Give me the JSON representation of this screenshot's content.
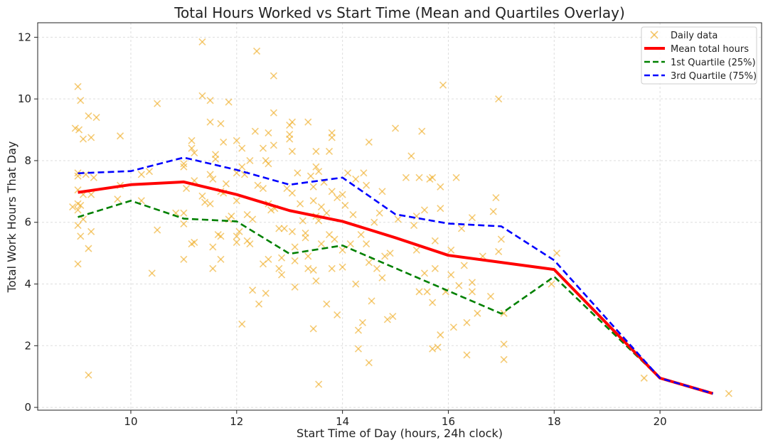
{
  "chart_data": {
    "type": "line",
    "title": "Total Hours Worked vs Start Time (Mean and Quartiles Overlay)",
    "xlabel": "Start Time of Day (hours, 24h clock)",
    "ylabel": "Total Work Hours That Day",
    "xlim": [
      8.24,
      21.92
    ],
    "ylim": [
      -0.09,
      12.47
    ],
    "xticks": [
      10,
      12,
      14,
      16,
      18,
      20
    ],
    "yticks": [
      0,
      2,
      4,
      6,
      8,
      10,
      12
    ],
    "grid": true,
    "legend_position": "top-right",
    "colors": {
      "scatter": "#f0b030",
      "mean": "#ff0000",
      "q1": "#008000",
      "q3": "#0000ff"
    },
    "series": [
      {
        "name": "Daily data",
        "kind": "scatter",
        "points": [
          [
            9.0,
            10.4
          ],
          [
            9.05,
            9.95
          ],
          [
            8.95,
            9.05
          ],
          [
            9.02,
            9.0
          ],
          [
            9.1,
            8.7
          ],
          [
            9.2,
            9.45
          ],
          [
            9.35,
            9.4
          ],
          [
            9.25,
            8.75
          ],
          [
            9.8,
            8.8
          ],
          [
            9.0,
            7.6
          ],
          [
            9.0,
            7.5
          ],
          [
            9.15,
            7.55
          ],
          [
            9.3,
            7.45
          ],
          [
            9.0,
            7.05
          ],
          [
            9.1,
            6.9
          ],
          [
            9.25,
            6.9
          ],
          [
            8.9,
            6.5
          ],
          [
            9.0,
            6.6
          ],
          [
            9.0,
            6.4
          ],
          [
            9.05,
            6.55
          ],
          [
            9.1,
            6.1
          ],
          [
            9.0,
            5.9
          ],
          [
            9.05,
            5.55
          ],
          [
            9.25,
            5.7
          ],
          [
            9.2,
            5.15
          ],
          [
            9.0,
            4.65
          ],
          [
            9.2,
            1.05
          ],
          [
            9.75,
            6.75
          ],
          [
            9.8,
            7.2
          ],
          [
            10.2,
            7.55
          ],
          [
            10.35,
            7.65
          ],
          [
            10.2,
            6.7
          ],
          [
            10.5,
            9.85
          ],
          [
            10.5,
            5.75
          ],
          [
            10.4,
            4.35
          ],
          [
            10.85,
            6.3
          ],
          [
            11.0,
            7.9
          ],
          [
            11.0,
            7.8
          ],
          [
            11.05,
            7.1
          ],
          [
            11.0,
            6.3
          ],
          [
            11.0,
            5.95
          ],
          [
            11.0,
            4.8
          ],
          [
            11.15,
            5.3
          ],
          [
            11.2,
            5.35
          ],
          [
            11.15,
            8.65
          ],
          [
            11.15,
            8.4
          ],
          [
            11.2,
            8.25
          ],
          [
            11.2,
            7.35
          ],
          [
            11.35,
            11.85
          ],
          [
            11.35,
            10.1
          ],
          [
            11.5,
            9.95
          ],
          [
            11.5,
            9.25
          ],
          [
            11.35,
            6.85
          ],
          [
            11.4,
            6.65
          ],
          [
            11.5,
            6.6
          ],
          [
            11.5,
            7.55
          ],
          [
            11.55,
            7.4
          ],
          [
            11.6,
            8.2
          ],
          [
            11.6,
            8.05
          ],
          [
            11.55,
            5.2
          ],
          [
            11.55,
            4.5
          ],
          [
            11.65,
            5.6
          ],
          [
            11.7,
            5.55
          ],
          [
            11.7,
            4.8
          ],
          [
            11.7,
            9.2
          ],
          [
            11.75,
            8.6
          ],
          [
            11.7,
            7.0
          ],
          [
            11.75,
            6.95
          ],
          [
            11.8,
            7.25
          ],
          [
            11.85,
            9.9
          ],
          [
            11.85,
            6.1
          ],
          [
            11.9,
            6.2
          ],
          [
            12.0,
            8.65
          ],
          [
            12.0,
            7.6
          ],
          [
            12.0,
            6.7
          ],
          [
            12.0,
            5.55
          ],
          [
            12.0,
            5.35
          ],
          [
            12.05,
            5.7
          ],
          [
            12.1,
            8.4
          ],
          [
            12.1,
            7.8
          ],
          [
            12.1,
            2.7
          ],
          [
            12.15,
            7.55
          ],
          [
            12.2,
            6.25
          ],
          [
            12.2,
            5.4
          ],
          [
            12.25,
            5.3
          ],
          [
            12.25,
            8.0
          ],
          [
            12.3,
            6.1
          ],
          [
            12.3,
            3.8
          ],
          [
            12.35,
            8.95
          ],
          [
            12.38,
            11.55
          ],
          [
            12.4,
            7.2
          ],
          [
            12.42,
            3.35
          ],
          [
            12.5,
            8.4
          ],
          [
            12.5,
            7.1
          ],
          [
            12.5,
            4.65
          ],
          [
            12.55,
            8.0
          ],
          [
            12.55,
            3.7
          ],
          [
            12.6,
            8.9
          ],
          [
            12.6,
            7.9
          ],
          [
            12.6,
            6.6
          ],
          [
            12.6,
            4.8
          ],
          [
            12.65,
            6.4
          ],
          [
            12.7,
            10.75
          ],
          [
            12.7,
            9.55
          ],
          [
            12.7,
            8.5
          ],
          [
            12.72,
            6.45
          ],
          [
            12.8,
            5.8
          ],
          [
            12.8,
            4.5
          ],
          [
            12.85,
            4.3
          ],
          [
            12.85,
            4.85
          ],
          [
            12.9,
            5.8
          ],
          [
            12.95,
            7.1
          ],
          [
            13.0,
            9.15
          ],
          [
            13.0,
            8.85
          ],
          [
            13.0,
            8.7
          ],
          [
            13.05,
            9.25
          ],
          [
            13.05,
            8.3
          ],
          [
            13.05,
            6.95
          ],
          [
            13.05,
            5.7
          ],
          [
            13.1,
            5.2
          ],
          [
            13.1,
            4.75
          ],
          [
            13.1,
            3.9
          ],
          [
            13.15,
            7.6
          ],
          [
            13.2,
            6.6
          ],
          [
            13.25,
            6.05
          ],
          [
            13.3,
            5.65
          ],
          [
            13.3,
            5.5
          ],
          [
            13.35,
            9.25
          ],
          [
            13.35,
            4.9
          ],
          [
            13.35,
            4.5
          ],
          [
            13.4,
            7.5
          ],
          [
            13.45,
            7.15
          ],
          [
            13.45,
            6.7
          ],
          [
            13.45,
            4.45
          ],
          [
            13.45,
            2.55
          ],
          [
            13.5,
            8.3
          ],
          [
            13.5,
            7.8
          ],
          [
            13.5,
            6.2
          ],
          [
            13.5,
            4.1
          ],
          [
            13.55,
            7.65
          ],
          [
            13.55,
            6.05
          ],
          [
            13.55,
            0.75
          ],
          [
            13.6,
            6.5
          ],
          [
            13.6,
            5.3
          ],
          [
            13.65,
            7.3
          ],
          [
            13.7,
            6.3
          ],
          [
            13.7,
            3.35
          ],
          [
            13.75,
            8.3
          ],
          [
            13.75,
            5.6
          ],
          [
            13.8,
            8.9
          ],
          [
            13.8,
            8.75
          ],
          [
            13.8,
            7.0
          ],
          [
            13.8,
            4.5
          ],
          [
            13.85,
            5.45
          ],
          [
            13.9,
            6.8
          ],
          [
            13.9,
            3.0
          ],
          [
            14.0,
            6.9
          ],
          [
            14.0,
            5.1
          ],
          [
            14.0,
            4.55
          ],
          [
            14.05,
            6.55
          ],
          [
            14.1,
            7.6
          ],
          [
            14.15,
            5.3
          ],
          [
            14.2,
            6.25
          ],
          [
            14.25,
            7.4
          ],
          [
            14.25,
            4.0
          ],
          [
            14.3,
            1.9
          ],
          [
            14.3,
            2.5
          ],
          [
            14.35,
            5.6
          ],
          [
            14.38,
            2.75
          ],
          [
            14.4,
            7.6
          ],
          [
            14.45,
            7.2
          ],
          [
            14.45,
            5.3
          ],
          [
            14.5,
            8.6
          ],
          [
            14.5,
            4.7
          ],
          [
            14.5,
            1.45
          ],
          [
            14.55,
            3.45
          ],
          [
            14.6,
            6.0
          ],
          [
            14.65,
            4.5
          ],
          [
            14.7,
            6.3
          ],
          [
            14.75,
            7.0
          ],
          [
            14.75,
            4.2
          ],
          [
            14.8,
            4.9
          ],
          [
            14.85,
            2.85
          ],
          [
            14.9,
            5.0
          ],
          [
            14.95,
            2.95
          ],
          [
            15.0,
            9.05
          ],
          [
            15.05,
            6.1
          ],
          [
            15.2,
            7.45
          ],
          [
            15.3,
            8.15
          ],
          [
            15.35,
            5.9
          ],
          [
            15.4,
            6.2
          ],
          [
            15.4,
            5.1
          ],
          [
            15.45,
            7.45
          ],
          [
            15.45,
            3.75
          ],
          [
            15.5,
            8.95
          ],
          [
            15.55,
            6.4
          ],
          [
            15.55,
            4.35
          ],
          [
            15.6,
            3.75
          ],
          [
            15.65,
            7.4
          ],
          [
            15.7,
            7.45
          ],
          [
            15.7,
            3.4
          ],
          [
            15.7,
            1.9
          ],
          [
            15.75,
            5.4
          ],
          [
            15.75,
            4.5
          ],
          [
            15.8,
            1.95
          ],
          [
            15.85,
            7.15
          ],
          [
            15.85,
            6.45
          ],
          [
            15.85,
            2.35
          ],
          [
            15.9,
            10.45
          ],
          [
            15.95,
            3.75
          ],
          [
            16.05,
            5.1
          ],
          [
            16.05,
            4.3
          ],
          [
            16.1,
            2.6
          ],
          [
            16.15,
            7.45
          ],
          [
            16.2,
            3.95
          ],
          [
            16.25,
            5.8
          ],
          [
            16.3,
            4.6
          ],
          [
            16.35,
            2.75
          ],
          [
            16.35,
            1.7
          ],
          [
            16.45,
            6.15
          ],
          [
            16.45,
            4.05
          ],
          [
            16.45,
            3.75
          ],
          [
            16.55,
            3.05
          ],
          [
            16.65,
            4.9
          ],
          [
            16.8,
            3.6
          ],
          [
            16.85,
            6.35
          ],
          [
            16.9,
            6.8
          ],
          [
            16.95,
            10.0
          ],
          [
            16.95,
            5.05
          ],
          [
            17.0,
            5.45
          ],
          [
            17.05,
            3.05
          ],
          [
            17.05,
            2.05
          ],
          [
            17.05,
            1.55
          ],
          [
            17.95,
            4.0
          ],
          [
            18.05,
            5.0
          ],
          [
            19.7,
            0.95
          ],
          [
            21.3,
            0.45
          ]
        ]
      },
      {
        "name": "Mean total hours",
        "kind": "line",
        "x": [
          9,
          10,
          11,
          12,
          13,
          14,
          15,
          16,
          18,
          20,
          21
        ],
        "y": [
          6.97,
          7.22,
          7.31,
          6.9,
          6.38,
          6.03,
          5.5,
          4.93,
          4.47,
          0.95,
          0.45
        ]
      },
      {
        "name": "1st Quartile (25%)",
        "kind": "dashed",
        "x": [
          9,
          10,
          11,
          12,
          13,
          14,
          17,
          18,
          20,
          21
        ],
        "y": [
          6.17,
          6.7,
          6.12,
          6.03,
          4.98,
          5.25,
          3.04,
          4.24,
          0.95,
          0.45
        ]
      },
      {
        "name": "3rd Quartile (75%)",
        "kind": "dashed",
        "x": [
          9,
          10,
          11,
          12,
          13,
          14,
          15,
          16,
          17,
          18,
          20,
          21
        ],
        "y": [
          7.59,
          7.66,
          8.1,
          7.7,
          7.22,
          7.45,
          6.26,
          5.96,
          5.87,
          4.77,
          0.95,
          0.45
        ]
      }
    ]
  }
}
